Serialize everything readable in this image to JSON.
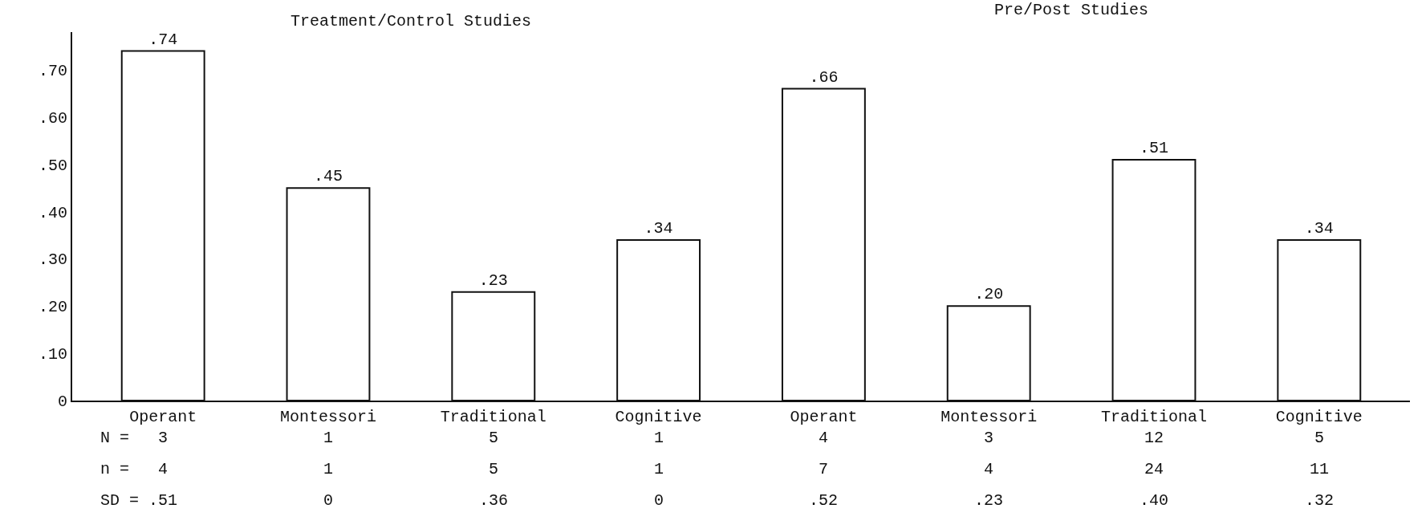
{
  "chart_data": {
    "type": "bar",
    "categories": [
      "Operant",
      "Montessori",
      "Traditional",
      "Cognitive",
      "Operant",
      "Montessori",
      "Traditional",
      "Cognitive"
    ],
    "values": [
      0.74,
      0.45,
      0.23,
      0.34,
      0.66,
      0.2,
      0.51,
      0.34
    ],
    "value_labels": [
      ".74",
      ".45",
      ".23",
      ".34",
      ".66",
      ".20",
      ".51",
      ".34"
    ],
    "colors": [
      "#ffffff",
      "#ffffff",
      "#ffffff",
      "#ffffff",
      "#ffffff",
      "#ffffff",
      "#ffffff",
      "#ffffff"
    ],
    "ylim": [
      0,
      0.78
    ],
    "yticks": [
      {
        "value": 0,
        "label": "0"
      },
      {
        "value": 0.1,
        "label": ".10"
      },
      {
        "value": 0.2,
        "label": ".20"
      },
      {
        "value": 0.3,
        "label": ".30"
      },
      {
        "value": 0.4,
        "label": ".40"
      },
      {
        "value": 0.5,
        "label": ".50"
      },
      {
        "value": 0.6,
        "label": ".60"
      },
      {
        "value": 0.7,
        "label": ".70"
      }
    ],
    "annotations": [
      "Treatment/Control Studies",
      "Pre/Post Studies",
      "N =",
      "3",
      "1",
      "5",
      "1",
      "4",
      "3",
      "12",
      "5",
      "n =",
      "4",
      "1",
      "5",
      "1",
      "7",
      "4",
      "24",
      "11",
      "SD =",
      ".51",
      "0",
      ".36",
      "0",
      ".52",
      ".23",
      ".40",
      ".32"
    ]
  }
}
